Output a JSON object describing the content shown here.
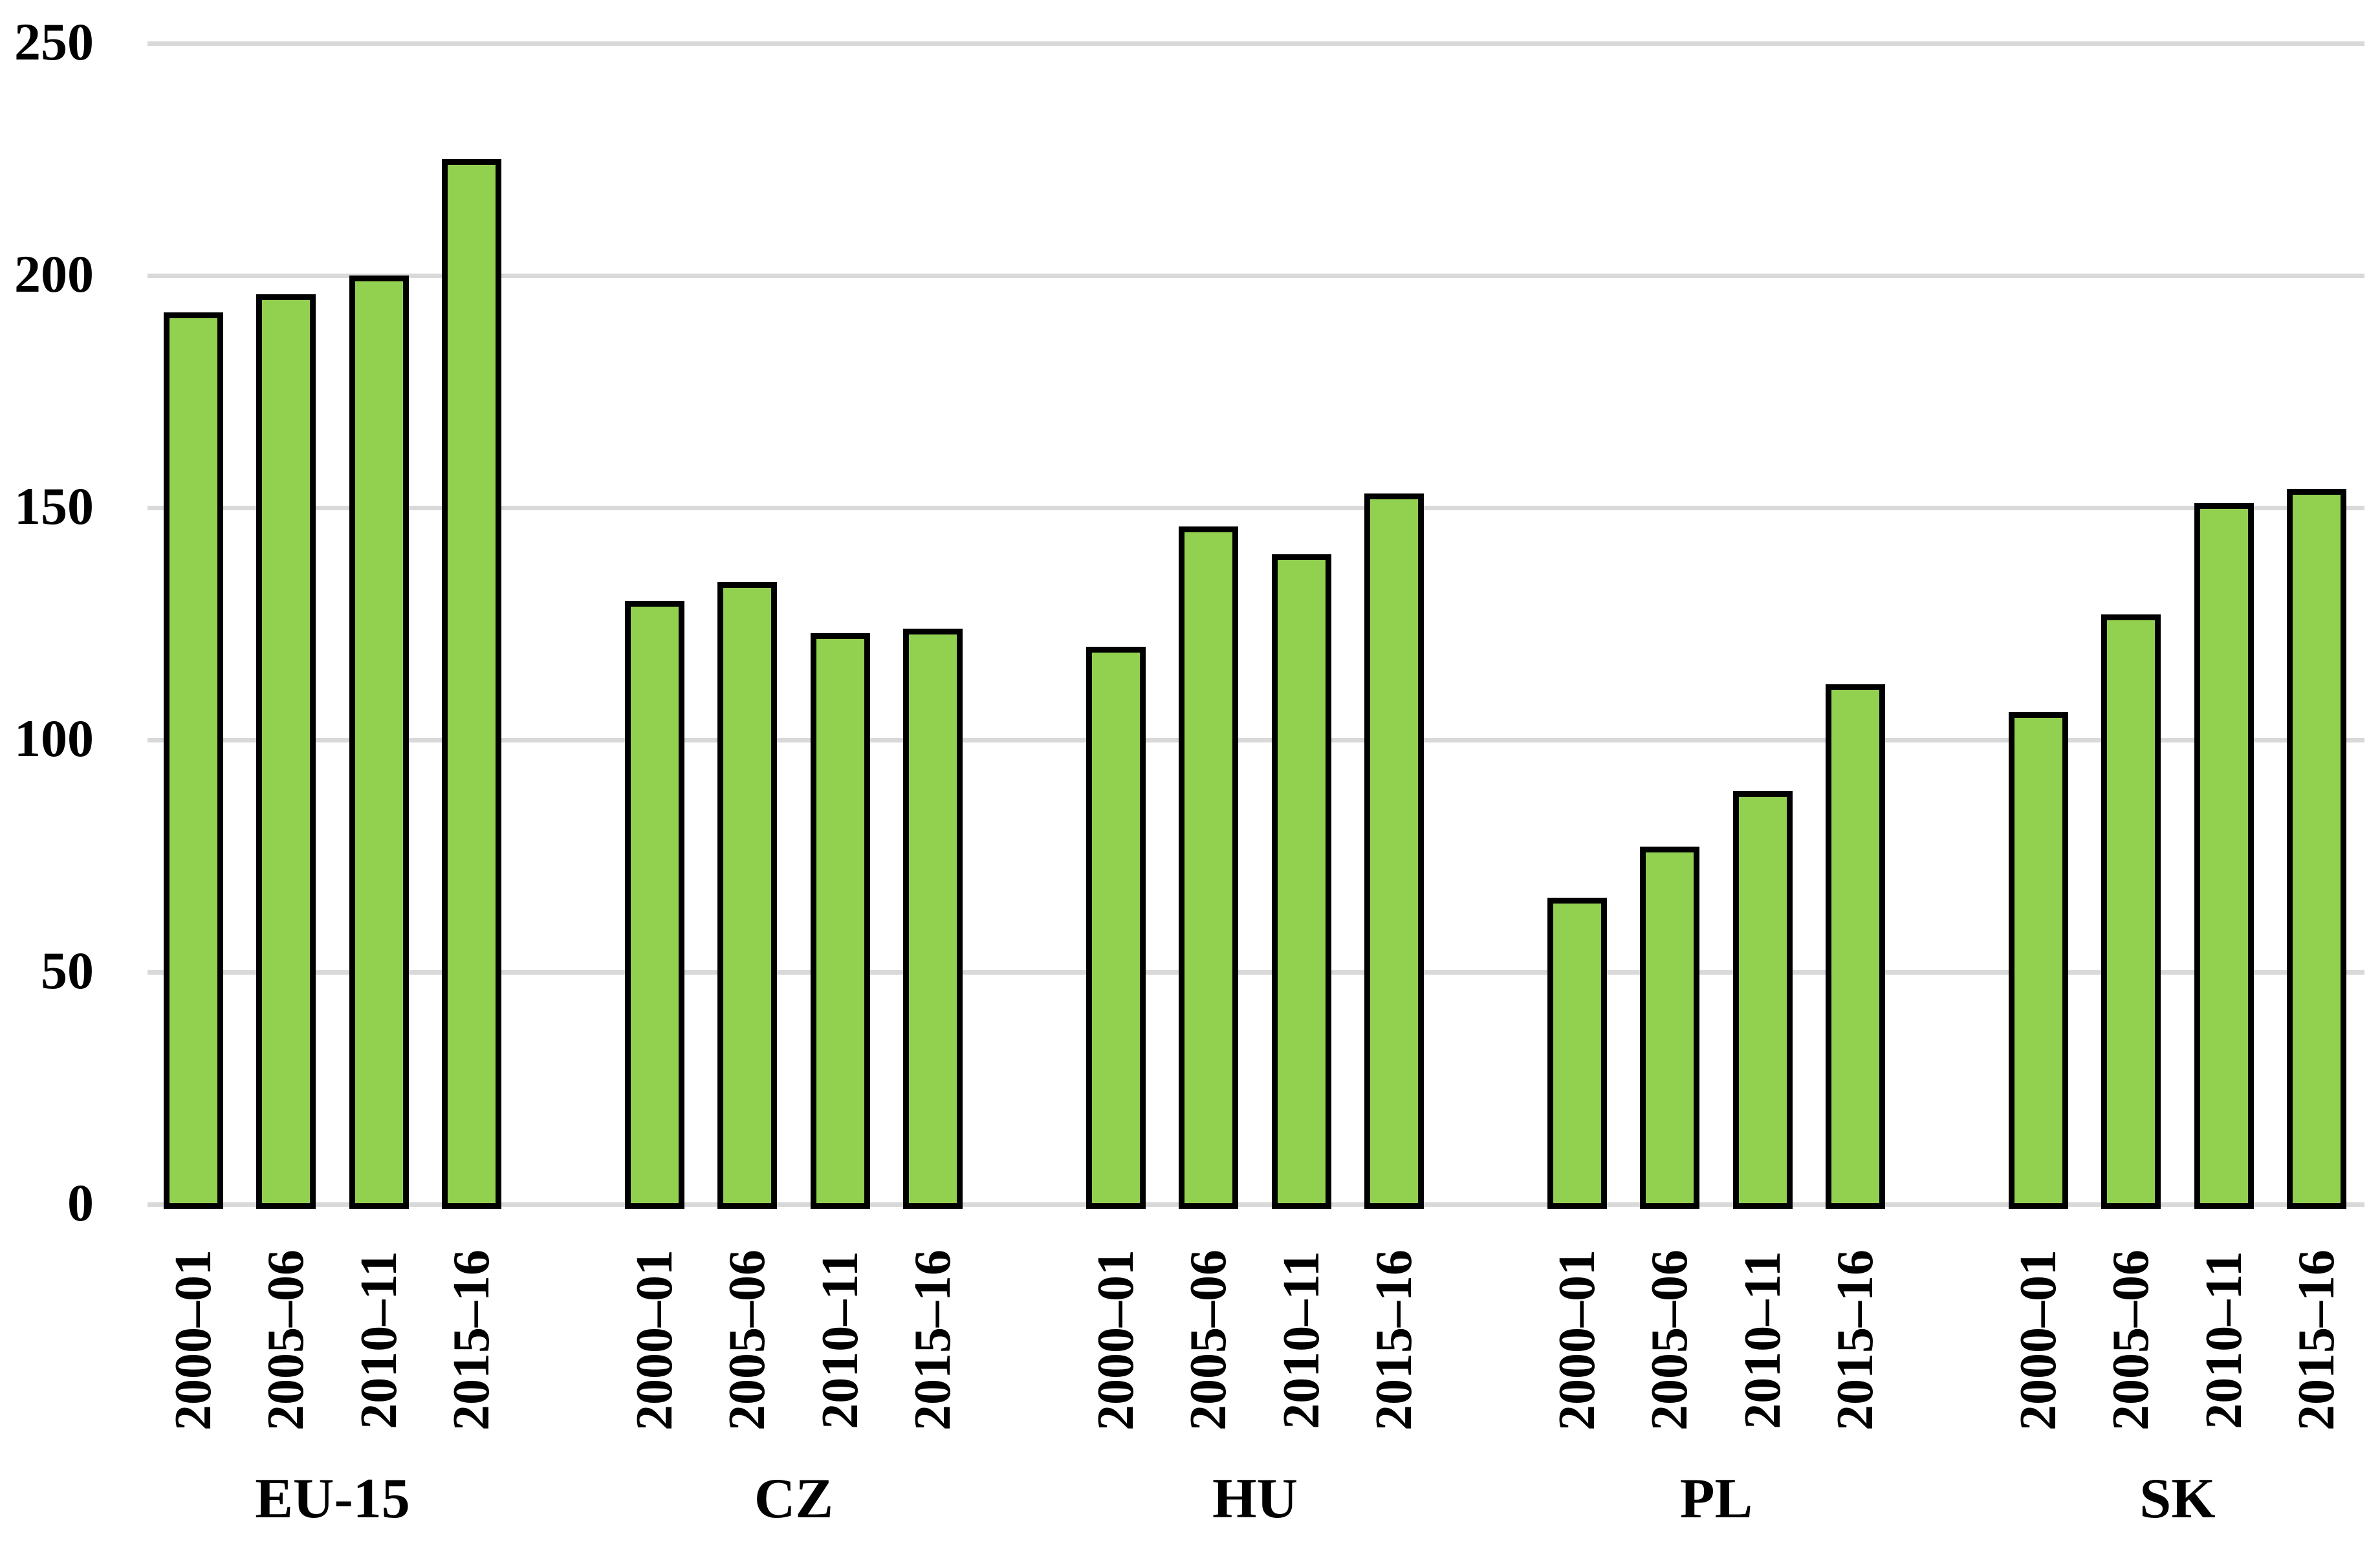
{
  "chart_data": {
    "type": "bar",
    "title": "",
    "xlabel": "",
    "ylabel": "",
    "ylim": [
      0,
      250
    ],
    "yticks": [
      0,
      50,
      100,
      150,
      200,
      250
    ],
    "grid": true,
    "legend": false,
    "legend_position": "none",
    "categories": [
      "2000–01",
      "2005–06",
      "2010–11",
      "2015–16"
    ],
    "groups": [
      {
        "label": "EU-15",
        "values": [
          192,
          196,
          200,
          225
        ]
      },
      {
        "label": "CZ",
        "values": [
          130,
          134,
          123,
          124
        ]
      },
      {
        "label": "HU",
        "values": [
          120,
          146,
          140,
          153
        ]
      },
      {
        "label": "PL",
        "values": [
          66,
          77,
          89,
          112
        ]
      },
      {
        "label": "SK",
        "values": [
          106,
          127,
          151,
          154
        ]
      }
    ],
    "colors": {
      "bar_fill": "#92D050",
      "bar_border": "#000000",
      "gridline": "#D9D9D9",
      "text": "#000000",
      "background": "#FFFFFF"
    }
  }
}
